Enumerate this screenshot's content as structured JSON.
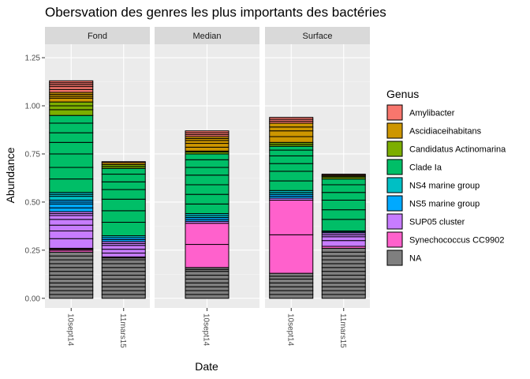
{
  "chart_data": {
    "type": "bar",
    "stacked": true,
    "title": "Obersvation des genres les plus importants des bactéries",
    "xlabel": "Date",
    "ylabel": "Abundance",
    "ylim": [
      0,
      1.25
    ],
    "yticks": [
      "0.00",
      "0.25",
      "0.50",
      "0.75",
      "1.00",
      "1.25"
    ],
    "ytick_values": [
      0,
      0.25,
      0.5,
      0.75,
      1.0,
      1.25
    ],
    "legend_title": "Genus",
    "legend_position": "right",
    "genera": [
      {
        "name": "Amylibacter",
        "color": "#F8766D"
      },
      {
        "name": "Ascidiaceihabitans",
        "color": "#CD9600"
      },
      {
        "name": "Candidatus Actinomarina",
        "color": "#7CAE00"
      },
      {
        "name": "Clade Ia",
        "color": "#00BE67"
      },
      {
        "name": "NS4 marine group",
        "color": "#00BFC4"
      },
      {
        "name": "NS5 marine group",
        "color": "#00A9FF"
      },
      {
        "name": "SUP05 cluster",
        "color": "#C77CFF"
      },
      {
        "name": "Synechococcus CC9902",
        "color": "#FF61CC"
      },
      {
        "name": "NA",
        "color": "#7F7F7F"
      }
    ],
    "facets": [
      {
        "label": "Fond",
        "categories": [
          "10sept14",
          "11mars15"
        ],
        "bars": [
          {
            "category": "10sept14",
            "segments": [
              {
                "genus": "NA",
                "values": [
                  0.02,
                  0.02,
                  0.02,
                  0.02,
                  0.02,
                  0.02,
                  0.02,
                  0.02,
                  0.02,
                  0.02,
                  0.02,
                  0.02
                ]
              },
              {
                "genus": "Synechococcus CC9902",
                "values": [
                  0.01,
                  0.005,
                  0.005
                ]
              },
              {
                "genus": "SUP05 cluster",
                "values": [
                  0.05,
                  0.04,
                  0.03,
                  0.03,
                  0.02,
                  0.01,
                  0.01
                ]
              },
              {
                "genus": "NS5 marine group",
                "values": [
                  0.02,
                  0.02,
                  0.01,
                  0.01
                ]
              },
              {
                "genus": "NS4 marine group",
                "values": [
                  0.02,
                  0.01,
                  0.01
                ]
              },
              {
                "genus": "Clade Ia",
                "values": [
                  0.07,
                  0.06,
                  0.07,
                  0.06,
                  0.05,
                  0.05,
                  0.04
                ]
              },
              {
                "genus": "Candidatus Actinomarina",
                "values": [
                  0.03,
                  0.02,
                  0.02
                ]
              },
              {
                "genus": "Ascidiaceihabitans",
                "values": [
                  0.02,
                  0.01,
                  0.01,
                  0.01
                ]
              },
              {
                "genus": "Amylibacter",
                "values": [
                  0.015,
                  0.015,
                  0.01,
                  0.01,
                  0.01
                ]
              }
            ]
          },
          {
            "category": "11mars15",
            "segments": [
              {
                "genus": "NA",
                "values": [
                  0.02,
                  0.02,
                  0.02,
                  0.02,
                  0.02,
                  0.02,
                  0.02,
                  0.02,
                  0.02,
                  0.02,
                  0.01
                ]
              },
              {
                "genus": "Synechococcus CC9902",
                "values": [
                  0.005
                ]
              },
              {
                "genus": "SUP05 cluster",
                "values": [
                  0.02,
                  0.02,
                  0.02,
                  0.01,
                  0.01
                ]
              },
              {
                "genus": "NS5 marine group",
                "values": [
                  0.01,
                  0.01
                ]
              },
              {
                "genus": "NS4 marine group",
                "values": [
                  0.01
                ]
              },
              {
                "genus": "Clade Ia",
                "values": [
                  0.07,
                  0.06,
                  0.06,
                  0.05,
                  0.04,
                  0.04,
                  0.03
                ]
              },
              {
                "genus": "Candidatus Actinomarina",
                "values": [
                  0.01,
                  0.01
                ]
              },
              {
                "genus": "Ascidiaceihabitans",
                "values": [
                  0.01
                ]
              },
              {
                "genus": "Amylibacter",
                "values": [
                  0.005
                ]
              }
            ]
          }
        ]
      },
      {
        "label": "Median",
        "categories": [
          "10sept14"
        ],
        "bars": [
          {
            "category": "10sept14",
            "segments": [
              {
                "genus": "NA",
                "values": [
                  0.02,
                  0.02,
                  0.02,
                  0.02,
                  0.02,
                  0.02,
                  0.02,
                  0.01,
                  0.01
                ]
              },
              {
                "genus": "Synechococcus CC9902",
                "values": [
                  0.12,
                  0.11
                ]
              },
              {
                "genus": "SUP05 cluster",
                "values": [
                  0.01
                ]
              },
              {
                "genus": "NS5 marine group",
                "values": [
                  0.01,
                  0.01
                ]
              },
              {
                "genus": "NS4 marine group",
                "values": [
                  0.01,
                  0.01
                ]
              },
              {
                "genus": "Clade Ia",
                "values": [
                  0.05,
                  0.05,
                  0.05,
                  0.05,
                  0.04,
                  0.04,
                  0.03
                ]
              },
              {
                "genus": "Candidatus Actinomarina",
                "values": [
                  0.01,
                  0.005
                ]
              },
              {
                "genus": "Ascidiaceihabitans",
                "values": [
                  0.02,
                  0.02,
                  0.015,
                  0.01,
                  0.01
                ]
              },
              {
                "genus": "Amylibacter",
                "values": [
                  0.01,
                  0.01,
                  0.01
                ]
              }
            ]
          }
        ]
      },
      {
        "label": "Surface",
        "categories": [
          "10sept14",
          "11mars15"
        ],
        "bars": [
          {
            "category": "10sept14",
            "segments": [
              {
                "genus": "NA",
                "values": [
                  0.02,
                  0.02,
                  0.02,
                  0.02,
                  0.02,
                  0.015,
                  0.015
                ]
              },
              {
                "genus": "Synechococcus CC9902",
                "values": [
                  0.2,
                  0.18
                ]
              },
              {
                "genus": "SUP05 cluster",
                "values": [
                  0.01
                ]
              },
              {
                "genus": "NS5 marine group",
                "values": [
                  0.01,
                  0.01
                ]
              },
              {
                "genus": "NS4 marine group",
                "values": [
                  0.01,
                  0.01
                ]
              },
              {
                "genus": "Clade Ia",
                "values": [
                  0.05,
                  0.05,
                  0.04,
                  0.04,
                  0.03,
                  0.02
                ]
              },
              {
                "genus": "Candidatus Actinomarina",
                "values": [
                  0.01,
                  0.01
                ]
              },
              {
                "genus": "Ascidiaceihabitans",
                "values": [
                  0.03,
                  0.03,
                  0.02,
                  0.02
                ]
              },
              {
                "genus": "Amylibacter",
                "values": [
                  0.01,
                  0.01,
                  0.01
                ]
              }
            ]
          },
          {
            "category": "11mars15",
            "segments": [
              {
                "genus": "NA",
                "values": [
                  0.02,
                  0.02,
                  0.02,
                  0.02,
                  0.02,
                  0.02,
                  0.02,
                  0.02,
                  0.02,
                  0.02,
                  0.02,
                  0.02,
                  0.02
                ]
              },
              {
                "genus": "Synechococcus CC9902",
                "values": [
                  0.01
                ]
              },
              {
                "genus": "SUP05 cluster",
                "values": [
                  0.03,
                  0.02,
                  0.01,
                  0.01
                ]
              },
              {
                "genus": "NS5 marine group",
                "values": [
                  0.005
                ]
              },
              {
                "genus": "NS4 marine group",
                "values": [
                  0.005
                ]
              },
              {
                "genus": "Clade Ia",
                "values": [
                  0.06,
                  0.05,
                  0.05,
                  0.04,
                  0.04,
                  0.03
                ]
              },
              {
                "genus": "Candidatus Actinomarina",
                "values": [
                  0.01,
                  0.005
                ]
              },
              {
                "genus": "Ascidiaceihabitans",
                "values": [
                  0.005
                ]
              },
              {
                "genus": "Amylibacter",
                "values": [
                  0.005
                ]
              }
            ]
          }
        ]
      }
    ]
  }
}
